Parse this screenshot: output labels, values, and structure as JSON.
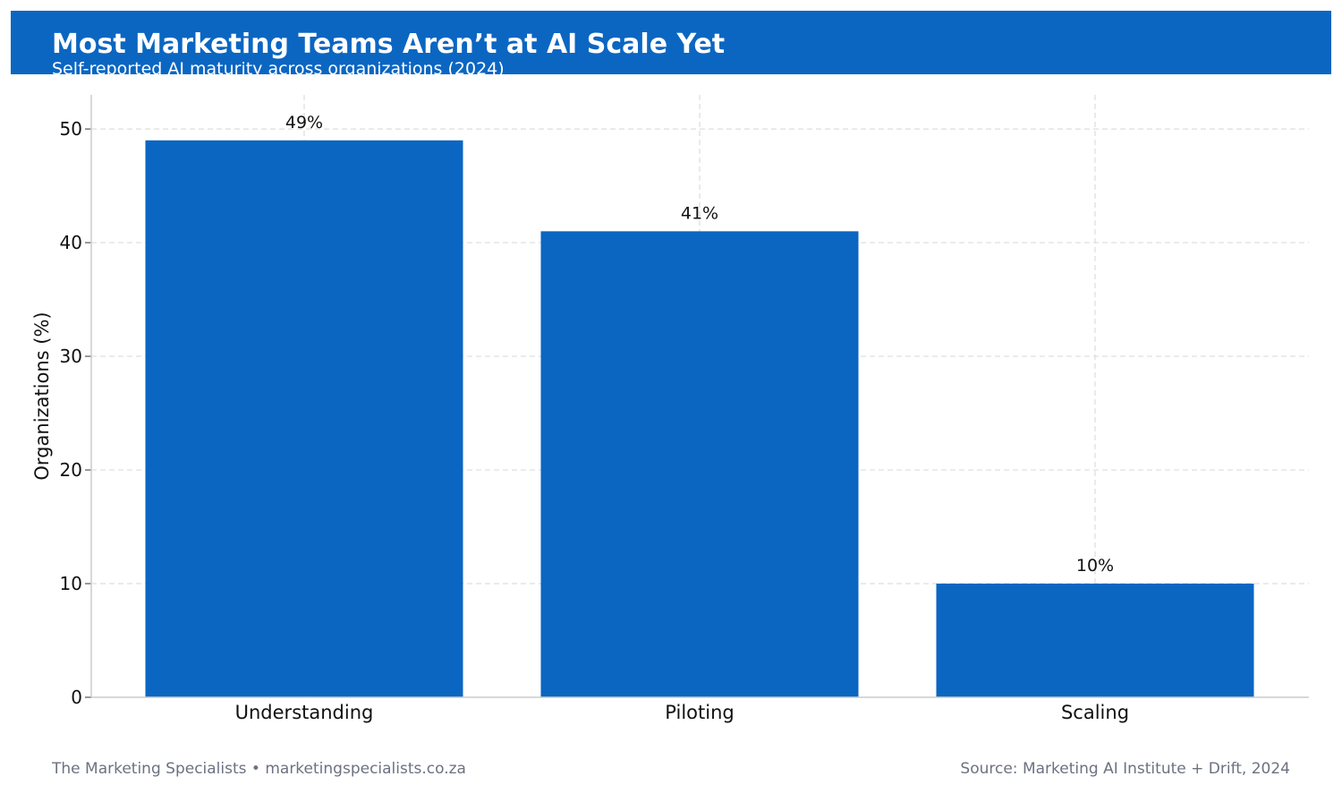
{
  "theme": {
    "accent": "#0B66C2",
    "header_text": "#FFFFFF",
    "footer_text": "#6B7280",
    "grid": "#DDDDDD",
    "axis": "#CCCCCC"
  },
  "chart_data": {
    "type": "bar",
    "title": "Most Marketing Teams Aren’t at AI Scale Yet",
    "subtitle": "Self-reported AI maturity across organizations (2024)",
    "categories": [
      "Understanding",
      "Piloting",
      "Scaling"
    ],
    "values": [
      49,
      41,
      10
    ],
    "data_labels": [
      "49%",
      "41%",
      "10%"
    ],
    "xlabel": "",
    "ylabel": "Organizations (%)",
    "ylim": [
      0,
      53
    ],
    "yticks": [
      "0",
      "10",
      "20",
      "30",
      "40",
      "50"
    ],
    "grid": true,
    "legend": "none"
  },
  "footer": {
    "brand": "The Marketing Specialists  •  marketingspecialists.co.za",
    "source": "Source: Marketing AI Institute + Drift, 2024"
  }
}
